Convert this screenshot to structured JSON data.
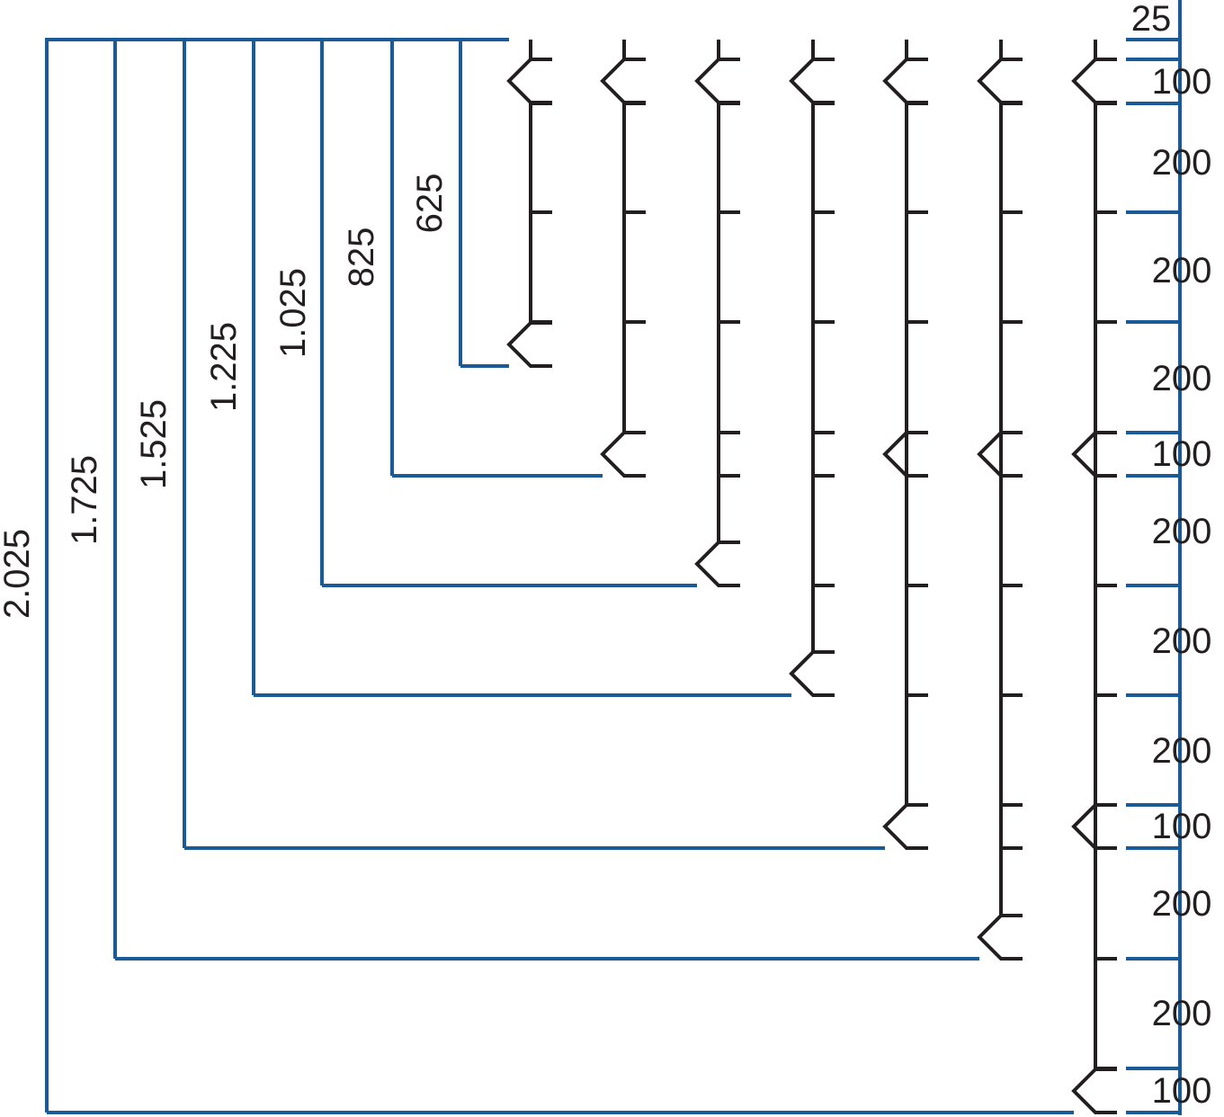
{
  "colors": {
    "dimension_line": "#1a5a96",
    "profile": "#231f20",
    "background": "#ffffff"
  },
  "overall_lengths": [
    "625",
    "825",
    "1.025",
    "1.225",
    "1.525",
    "1.725",
    "2.025"
  ],
  "segment_lengths": [
    "25",
    "100",
    "200",
    "200",
    "200",
    "100",
    "200",
    "200",
    "200",
    "100",
    "200",
    "200",
    "100"
  ]
}
